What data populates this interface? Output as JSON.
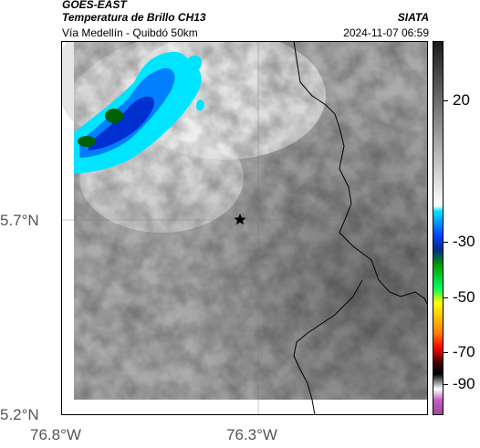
{
  "header": {
    "satellite": "GOES-EAST",
    "product": "Temperatura de Brillo CH13",
    "route": "Vía Medellín - Quibdó 50km",
    "organization": "SIATA",
    "timestamp": "2024-11-07 06:59"
  },
  "map": {
    "lat_labels": [
      "5.7°N",
      "5.2°N"
    ],
    "lon_labels": [
      "76.8°W",
      "76.3°W"
    ],
    "marker_icon": "star-icon",
    "gridlines": true
  },
  "colorbar": {
    "tick_labels": [
      "20",
      "-30",
      "-50",
      "-70",
      "-90"
    ],
    "colors": {
      "warm_black": "#1a1a1a",
      "warm_white": "#ffffff",
      "cyan": "#00e5ff",
      "blue": "#0040ff",
      "green": "#00a000",
      "yellow": "#ffff00",
      "red": "#ff0000",
      "black": "#000000",
      "magenta": "#c060c0"
    }
  }
}
